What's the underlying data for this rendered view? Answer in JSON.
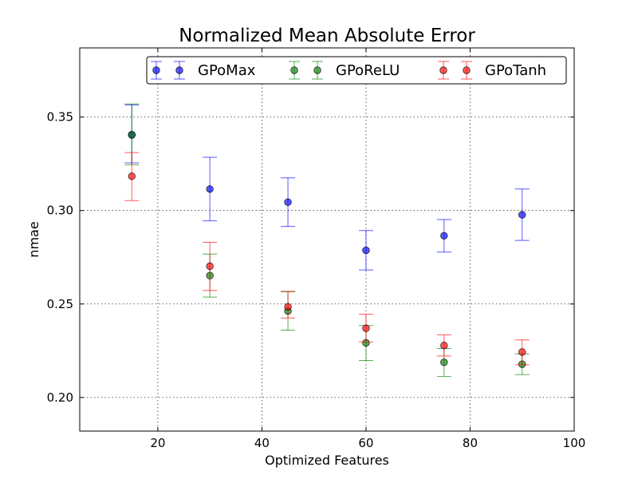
{
  "chart_data": {
    "type": "scatter",
    "title": "Normalized Mean Absolute Error",
    "xlabel": "Optimized Features",
    "ylabel": "nmae",
    "xlim": [
      5,
      100
    ],
    "ylim": [
      0.182,
      0.387
    ],
    "xticks": [
      20,
      40,
      60,
      80,
      100
    ],
    "yticks": [
      0.2,
      0.25,
      0.3,
      0.35
    ],
    "xtick_labels": [
      "20",
      "40",
      "60",
      "80",
      "100"
    ],
    "ytick_labels": [
      "0.20",
      "0.25",
      "0.30",
      "0.35"
    ],
    "grid": true,
    "legend_position": "top",
    "series": [
      {
        "name": "GPoMax",
        "color": "#0000ff",
        "x": [
          15,
          30,
          45,
          60,
          75,
          90
        ],
        "y": [
          0.3405,
          0.3115,
          0.3045,
          0.2787,
          0.2865,
          0.2977
        ],
        "err_low": [
          0.3255,
          0.2945,
          0.2915,
          0.2682,
          0.2778,
          0.284
        ],
        "err_high": [
          0.3565,
          0.3285,
          0.3175,
          0.2893,
          0.2952,
          0.3115
        ]
      },
      {
        "name": "GPoReLU",
        "color": "#008000",
        "x": [
          15,
          30,
          45,
          60,
          75,
          90
        ],
        "y": [
          0.3405,
          0.2652,
          0.2462,
          0.2292,
          0.2188,
          0.2178
        ],
        "err_low": [
          0.3245,
          0.2537,
          0.236,
          0.2198,
          0.2112,
          0.2122
        ],
        "err_high": [
          0.357,
          0.2767,
          0.2565,
          0.2385,
          0.2262,
          0.2233
        ]
      },
      {
        "name": "GPoTanh",
        "color": "#ff0000",
        "x": [
          15,
          30,
          45,
          60,
          75,
          90
        ],
        "y": [
          0.3183,
          0.2702,
          0.2485,
          0.237,
          0.2278,
          0.2243
        ],
        "err_low": [
          0.3053,
          0.2572,
          0.2425,
          0.2297,
          0.2222,
          0.2175
        ],
        "err_high": [
          0.331,
          0.283,
          0.2568,
          0.2445,
          0.2335,
          0.2308
        ]
      }
    ]
  }
}
